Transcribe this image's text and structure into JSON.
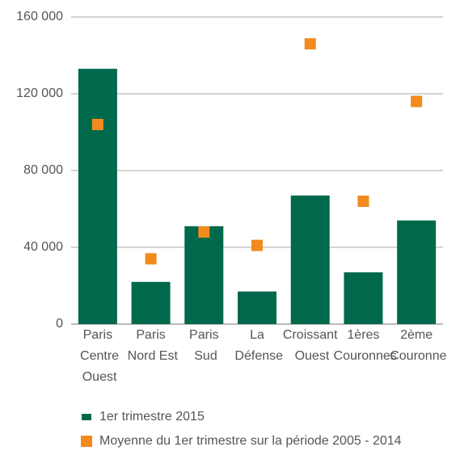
{
  "chart_data": {
    "type": "bar",
    "categories": [
      "Paris Centre Ouest",
      "Paris Nord Est",
      "Paris Sud",
      "La Défense",
      "Croissant Ouest",
      "1ères Couronnes",
      "2ème Couronne"
    ],
    "series": [
      {
        "name": "1er trimestre 2015",
        "type": "bar",
        "color": "#00694b",
        "values": [
          133000,
          22000,
          51000,
          17000,
          67000,
          27000,
          54000
        ]
      },
      {
        "name": "Moyenne du 1er trimestre sur la période 2005 - 2014",
        "type": "marker",
        "color": "#f28a1e",
        "values": [
          104000,
          34000,
          48000,
          41000,
          146000,
          64000,
          116000
        ]
      }
    ],
    "ylim": [
      0,
      160000
    ],
    "yticks": [
      0,
      {
        "value": 40000,
        "label": "40 000"
      },
      {
        "value": 80000,
        "label": "80 000"
      },
      {
        "value": 120000,
        "label": "120 000"
      },
      {
        "value": 160000,
        "label": "160 000"
      }
    ],
    "grid": true,
    "legend": "bottom"
  }
}
